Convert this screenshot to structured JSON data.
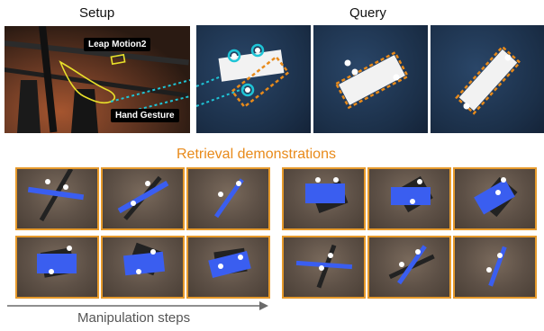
{
  "headers": {
    "setup": "Setup",
    "query": "Query"
  },
  "setup_tags": {
    "leap_motion": "Leap Motion2",
    "hand_gesture": "Hand Gesture"
  },
  "retrieval_title": "Retrieval demonstrations",
  "steps_label": "Manipulation steps",
  "colors": {
    "accent_orange": "#e88a1a",
    "frame_orange": "#e69a2c",
    "gesture_cyan": "#1fc4d6",
    "hand_outline_yellow": "#e8e02a",
    "object_blue": "#3a5ef0",
    "arrow_gray": "#6a6a6a"
  }
}
